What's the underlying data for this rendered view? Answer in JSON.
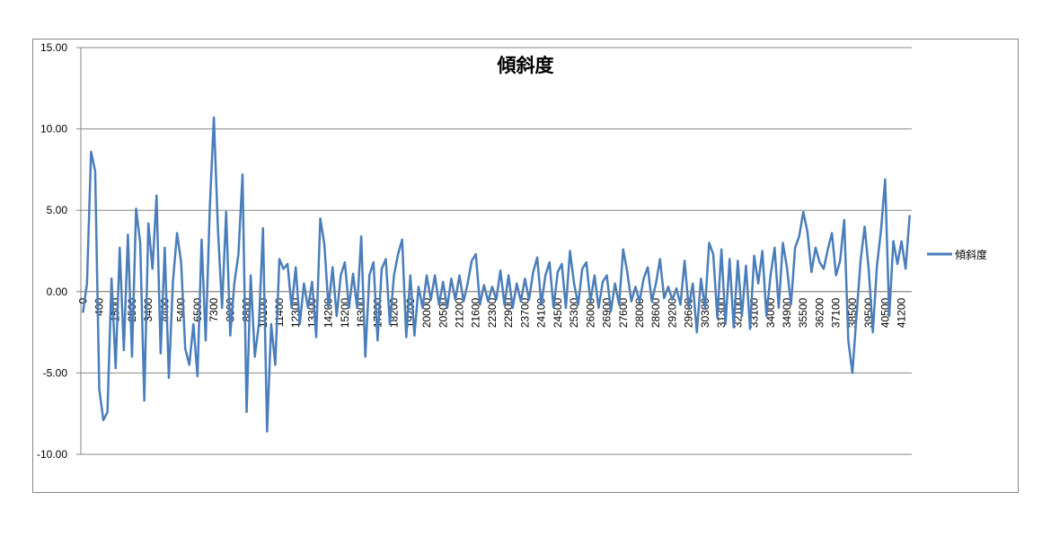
{
  "chart_data": {
    "type": "line",
    "title": "傾斜度",
    "categories": [
      "0",
      null,
      null,
      null,
      "400",
      null,
      null,
      null,
      "1500",
      null,
      null,
      null,
      "2500",
      null,
      null,
      null,
      "3400",
      null,
      null,
      null,
      "4400",
      null,
      null,
      null,
      "5400",
      null,
      null,
      null,
      "6500",
      null,
      null,
      null,
      "7300",
      null,
      null,
      null,
      "8000",
      null,
      null,
      null,
      "8800",
      null,
      null,
      null,
      "10100",
      null,
      null,
      null,
      "11400",
      null,
      null,
      null,
      "12300",
      null,
      null,
      null,
      "13300",
      null,
      null,
      null,
      "14200",
      null,
      null,
      null,
      "15200",
      null,
      null,
      null,
      "16300",
      null,
      null,
      null,
      "17200",
      null,
      null,
      null,
      "18200",
      null,
      null,
      null,
      "19200",
      null,
      null,
      null,
      "20000",
      null,
      null,
      null,
      "20500",
      null,
      null,
      null,
      "21200",
      null,
      null,
      null,
      "21600",
      null,
      null,
      null,
      "22300",
      null,
      null,
      null,
      "22900",
      null,
      null,
      null,
      "23700",
      null,
      null,
      null,
      "24100",
      null,
      null,
      null,
      "24500",
      null,
      null,
      null,
      "25300",
      null,
      null,
      null,
      "26000",
      null,
      null,
      null,
      "26900",
      null,
      null,
      null,
      "27600",
      null,
      null,
      null,
      "28000",
      null,
      null,
      null,
      "28600",
      null,
      null,
      null,
      "29200",
      null,
      null,
      null,
      "29600",
      null,
      null,
      null,
      "30300",
      null,
      null,
      null,
      "31300",
      null,
      null,
      null,
      "32100",
      null,
      null,
      null,
      "33100",
      null,
      null,
      null,
      "34000",
      null,
      null,
      null,
      "34900",
      null,
      null,
      null,
      "35500",
      null,
      null,
      null,
      "36200",
      null,
      null,
      null,
      "37100",
      null,
      null,
      null,
      "38500",
      null,
      null,
      null,
      "39500",
      null,
      null,
      null,
      "40500",
      null,
      null,
      null,
      "41200",
      null,
      null
    ],
    "series": [
      {
        "name": "傾斜度",
        "color": "#4a7ebb",
        "values": [
          -1.3,
          0.5,
          8.6,
          7.4,
          -6,
          -7.9,
          -7.4,
          0.8,
          -4.7,
          2.7,
          -3.6,
          3.5,
          -4,
          5.1,
          3,
          -6.7,
          4.2,
          1.4,
          5.9,
          -3.8,
          2.7,
          -5.3,
          0.6,
          3.6,
          1.8,
          -3.5,
          -4.5,
          -2,
          -5.2,
          3.2,
          -3,
          5.1,
          10.7,
          3.8,
          -1,
          4.9,
          -2.7,
          0.5,
          2.3,
          7.2,
          -7.4,
          1,
          -4,
          -2,
          3.9,
          -8.6,
          -2,
          -4.5,
          2,
          1.4,
          1.7,
          -1,
          1.5,
          -2,
          0.5,
          -1,
          0.6,
          -2.8,
          4.5,
          2.9,
          -1,
          1.5,
          -1.5,
          1,
          1.8,
          -1,
          1.1,
          -1,
          3.4,
          -4,
          1,
          1.8,
          -3,
          1.4,
          2,
          -2,
          1,
          2.3,
          3.2,
          -2.8,
          1,
          -2.7,
          0.3,
          -1,
          1,
          -0.5,
          1,
          -0.8,
          0.6,
          -1,
          0.8,
          -0.5,
          1,
          -0.6,
          0.5,
          1.9,
          2.3,
          -0.8,
          0.4,
          -0.6,
          0.3,
          -0.5,
          1.3,
          -0.8,
          1,
          -1,
          0.5,
          -0.6,
          0.8,
          -0.5,
          1.2,
          2.1,
          -0.8,
          1,
          1.8,
          -1,
          1.2,
          1.7,
          -1,
          2.5,
          0.5,
          -0.8,
          1.4,
          1.8,
          -0.6,
          1,
          -1,
          0.6,
          1,
          -1.2,
          0.5,
          -0.8,
          2.6,
          1.2,
          -0.6,
          0.3,
          -0.6,
          0.8,
          1.5,
          -0.6,
          0.5,
          2,
          -0.4,
          0.3,
          -0.5,
          0.2,
          -0.8,
          1.9,
          -1,
          0.5,
          -2.5,
          0.8,
          -1,
          3,
          2.3,
          -1.6,
          2.6,
          -2,
          2,
          -2.2,
          1.9,
          -1.5,
          1.6,
          -2.3,
          2.2,
          0.5,
          2.5,
          -1.5,
          1,
          2.7,
          -1,
          3,
          1.5,
          -0.8,
          2.7,
          3.4,
          4.9,
          3.7,
          1.2,
          2.7,
          1.8,
          1.4,
          2.6,
          3.6,
          1,
          1.9,
          4.4,
          -3,
          -5,
          -1.5,
          1.9,
          4,
          1.3,
          -2.5,
          1.6,
          3.8,
          6.9,
          -1.5,
          3.1,
          1.7,
          3.1,
          1.4,
          4.7
        ]
      }
    ],
    "ylim": [
      -10,
      15
    ],
    "yticks": [
      {
        "value": -10,
        "label": "-10.00"
      },
      {
        "value": -5,
        "label": "-5.00"
      },
      {
        "value": 0,
        "label": "0.00"
      },
      {
        "value": 5,
        "label": "5.00"
      },
      {
        "value": 10,
        "label": "10.00"
      },
      {
        "value": 15,
        "label": "15.00"
      }
    ],
    "grid": true,
    "legend": "right"
  }
}
